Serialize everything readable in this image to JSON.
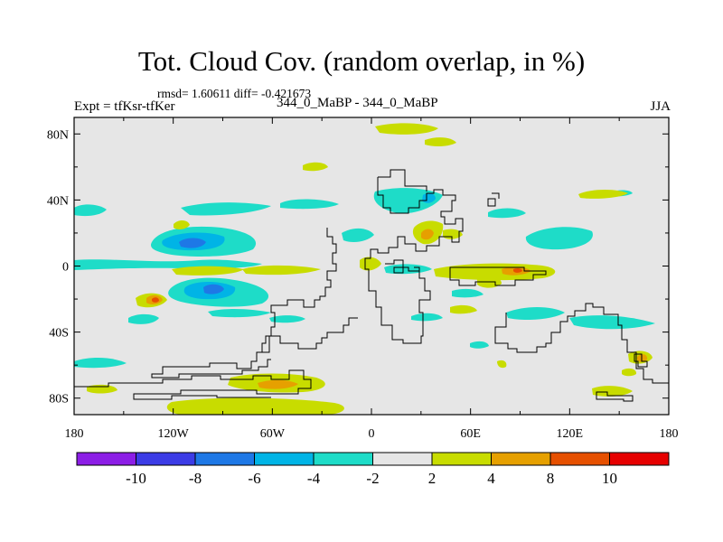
{
  "header": {
    "title": "Tot. Cloud Cov. (random overlap, in %)",
    "stats": "rmsd= 1.60611 diff= -0.421673",
    "experiment": "Expt = tfKsr-tfKer",
    "runs": "344_0_MaBP - 344_0_MaBP",
    "season": "JJA"
  },
  "chart_data": {
    "type": "heatmap",
    "title": "Tot. Cloud Cov. (random overlap, in %)",
    "subtitle": "344_0_MaBP - 344_0_MaBP",
    "rmsd": 1.60611,
    "diff": -0.421673,
    "season": "JJA",
    "xlim": [
      -180,
      180
    ],
    "ylim": [
      -90,
      90
    ],
    "x_ticks": [
      {
        "value": -180,
        "label": "180"
      },
      {
        "value": -120,
        "label": "120W"
      },
      {
        "value": -60,
        "label": "60W"
      },
      {
        "value": 0,
        "label": "0"
      },
      {
        "value": 60,
        "label": "60E"
      },
      {
        "value": 120,
        "label": "120E"
      },
      {
        "value": 180,
        "label": "180"
      }
    ],
    "y_ticks": [
      {
        "value": 80,
        "label": "80N"
      },
      {
        "value": 40,
        "label": "40N"
      },
      {
        "value": 0,
        "label": "0"
      },
      {
        "value": -40,
        "label": "40S"
      },
      {
        "value": -80,
        "label": "80S"
      }
    ],
    "colorbar": {
      "levels": [
        -10,
        -8,
        -6,
        -4,
        -2,
        2,
        4,
        8,
        10
      ],
      "labels": [
        "-10",
        "-8",
        "-6",
        "-4",
        "-2",
        "2",
        "4",
        "8",
        "10"
      ],
      "colors": [
        "#8c1ee6",
        "#3c3ce6",
        "#1e78e6",
        "#00b4e6",
        "#1edcc8",
        "#e6e6e6",
        "#c8dc00",
        "#e6a000",
        "#e65000",
        "#e60000"
      ]
    },
    "features": [
      {
        "name": "east-pacific-negative",
        "lon": -115,
        "lat": 15,
        "value": -6
      },
      {
        "name": "east-pacific-south-negative",
        "lon": -95,
        "lat": -15,
        "value": -6
      },
      {
        "name": "south-pacific-positive",
        "lon": -130,
        "lat": -20,
        "value": 6
      },
      {
        "name": "southern-ocean-positive",
        "lon": -50,
        "lat": -70,
        "value": 6
      },
      {
        "name": "africa-positive",
        "lon": 30,
        "lat": 18,
        "value": 6
      },
      {
        "name": "indian-ocean-positive",
        "lon": 85,
        "lat": -3,
        "value": 6
      },
      {
        "name": "central-asia-negative",
        "lon": 35,
        "lat": 40,
        "value": -6
      },
      {
        "name": "new-zealand-positive",
        "lon": 165,
        "lat": -55,
        "value": 6
      }
    ]
  }
}
